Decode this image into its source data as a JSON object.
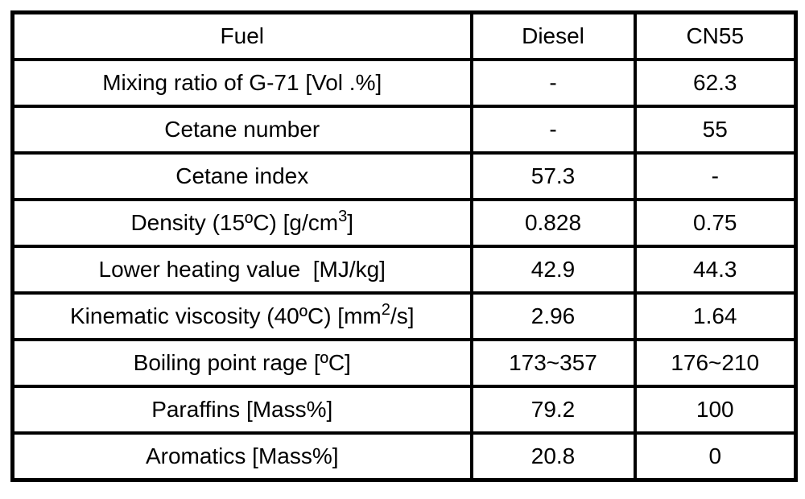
{
  "colors": {
    "background": "#ffffff",
    "border": "#000000",
    "text": "#000000"
  },
  "chart_data": {
    "type": "table",
    "columns": [
      "Fuel",
      "Diesel",
      "CN55"
    ],
    "rows": [
      {
        "label_pre": "Mixing ratio of G-71 [Vol .%]",
        "label_sup": "",
        "label_post": "",
        "diesel": "-",
        "cn55": "62.3"
      },
      {
        "label_pre": "Cetane number",
        "label_sup": "",
        "label_post": "",
        "diesel": "-",
        "cn55": "55"
      },
      {
        "label_pre": "Cetane index",
        "label_sup": "",
        "label_post": "",
        "diesel": "57.3",
        "cn55": "-"
      },
      {
        "label_pre": "Density (15ºC) [g/cm",
        "label_sup": "3",
        "label_post": "]",
        "diesel": "0.828",
        "cn55": "0.75"
      },
      {
        "label_pre": "Lower heating value  [MJ/kg]",
        "label_sup": "",
        "label_post": "",
        "diesel": "42.9",
        "cn55": "44.3"
      },
      {
        "label_pre": "Kinematic viscosity (40ºC) [mm",
        "label_sup": "2",
        "label_post": "/s]",
        "diesel": "2.96",
        "cn55": "1.64"
      },
      {
        "label_pre": "Boiling point rage [ºC]",
        "label_sup": "",
        "label_post": "",
        "diesel": "173~357",
        "cn55": "176~210"
      },
      {
        "label_pre": "Paraffins [Mass%]",
        "label_sup": "",
        "label_post": "",
        "diesel": "79.2",
        "cn55": "100"
      },
      {
        "label_pre": "Aromatics [Mass%]",
        "label_sup": "",
        "label_post": "",
        "diesel": "20.8",
        "cn55": "0"
      }
    ]
  }
}
